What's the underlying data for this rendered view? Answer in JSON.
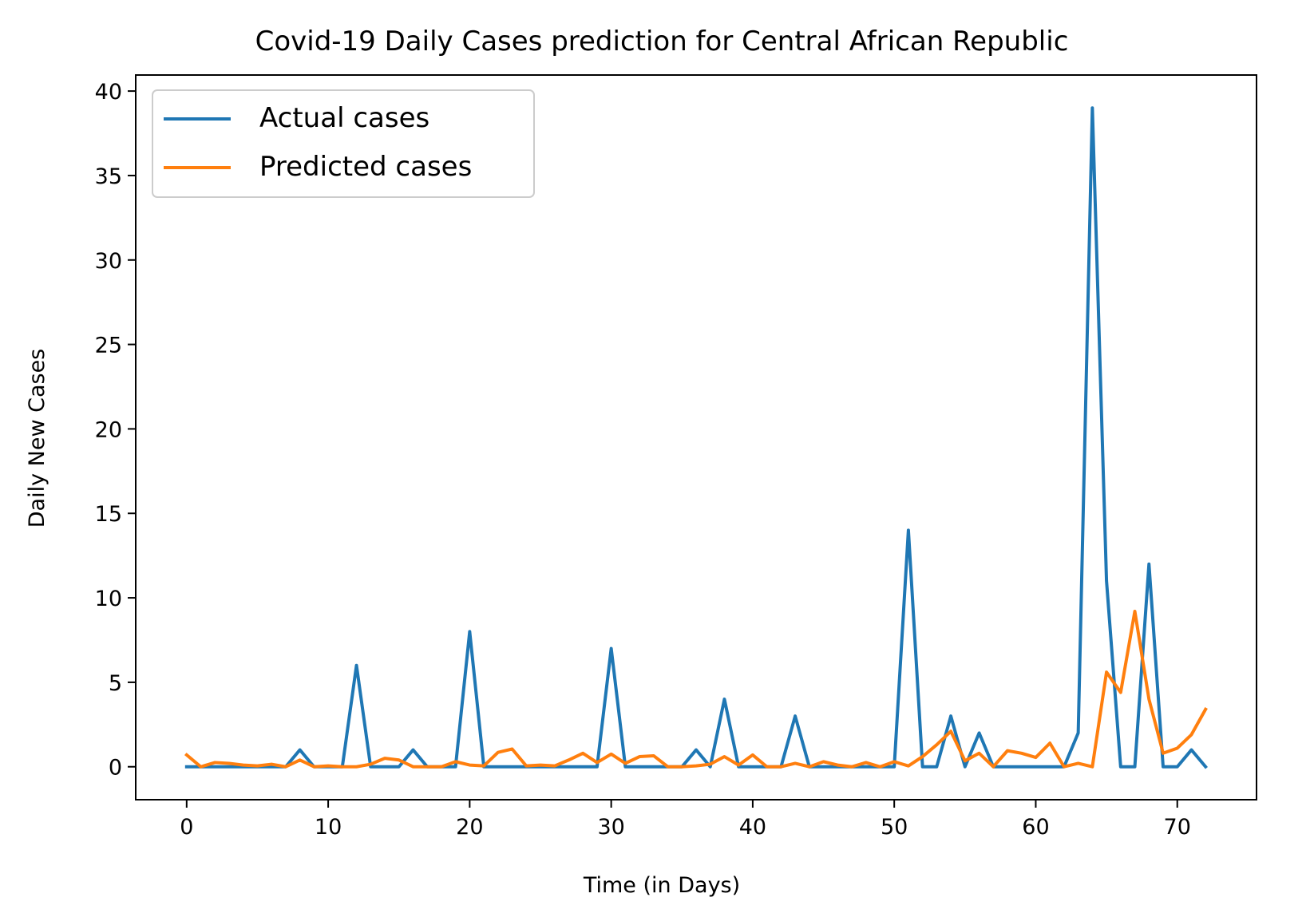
{
  "chart_data": {
    "type": "line",
    "title": "Covid-19 Daily Cases prediction for Central African Republic",
    "xlabel": "Time (in Days)",
    "ylabel": "Daily New Cases",
    "xlim": [
      -3.6,
      75.6
    ],
    "ylim": [
      -1.95,
      40.95
    ],
    "xticks": [
      0,
      10,
      20,
      30,
      40,
      50,
      60,
      70
    ],
    "yticks": [
      0,
      5,
      10,
      15,
      20,
      25,
      30,
      35,
      40
    ],
    "grid": false,
    "legend_position": "top-left",
    "x": [
      0,
      1,
      2,
      3,
      4,
      5,
      6,
      7,
      8,
      9,
      10,
      11,
      12,
      13,
      14,
      15,
      16,
      17,
      18,
      19,
      20,
      21,
      22,
      23,
      24,
      25,
      26,
      27,
      28,
      29,
      30,
      31,
      32,
      33,
      34,
      35,
      36,
      37,
      38,
      39,
      40,
      41,
      42,
      43,
      44,
      45,
      46,
      47,
      48,
      49,
      50,
      51,
      52,
      53,
      54,
      55,
      56,
      57,
      58,
      59,
      60,
      61,
      62,
      63,
      64,
      65,
      66,
      67,
      68,
      69,
      70,
      71,
      72
    ],
    "series": [
      {
        "name": "Actual cases",
        "color": "#1f77b4",
        "values": [
          0,
          0,
          0,
          0,
          0,
          0,
          0,
          0,
          1,
          0,
          0,
          0,
          6,
          0,
          0,
          0,
          1,
          0,
          0,
          0,
          8,
          0,
          0,
          0,
          0,
          0,
          0,
          0,
          0,
          0,
          7,
          0,
          0,
          0,
          0,
          0,
          1,
          0,
          4,
          0,
          0,
          0,
          0,
          3,
          0,
          0,
          0,
          0,
          0,
          0,
          0,
          14,
          0,
          0,
          3,
          0,
          2,
          0,
          0,
          0,
          0,
          0,
          0,
          2,
          39,
          11,
          0,
          0,
          12,
          0,
          0,
          1,
          0
        ]
      },
      {
        "name": "Predicted cases",
        "color": "#ff7f0e",
        "values": [
          0.7,
          0,
          0.25,
          0.2,
          0.1,
          0.05,
          0.15,
          0,
          0.4,
          0,
          0.05,
          0,
          0,
          0.15,
          0.5,
          0.4,
          0,
          0,
          0,
          0.3,
          0.1,
          0.05,
          0.85,
          1.05,
          0.05,
          0.1,
          0.05,
          0.4,
          0.8,
          0.25,
          0.75,
          0.2,
          0.6,
          0.65,
          0,
          0,
          0.05,
          0.15,
          0.6,
          0.1,
          0.7,
          0,
          0,
          0.2,
          0,
          0.3,
          0.1,
          0,
          0.25,
          0,
          0.3,
          0.05,
          0.6,
          1.3,
          2.1,
          0.35,
          0.8,
          0,
          0.95,
          0.8,
          0.55,
          1.4,
          0,
          0.2,
          0,
          5.6,
          4.4,
          9.2,
          4.0,
          0.8,
          1.1,
          1.9,
          3.4
        ]
      }
    ]
  }
}
